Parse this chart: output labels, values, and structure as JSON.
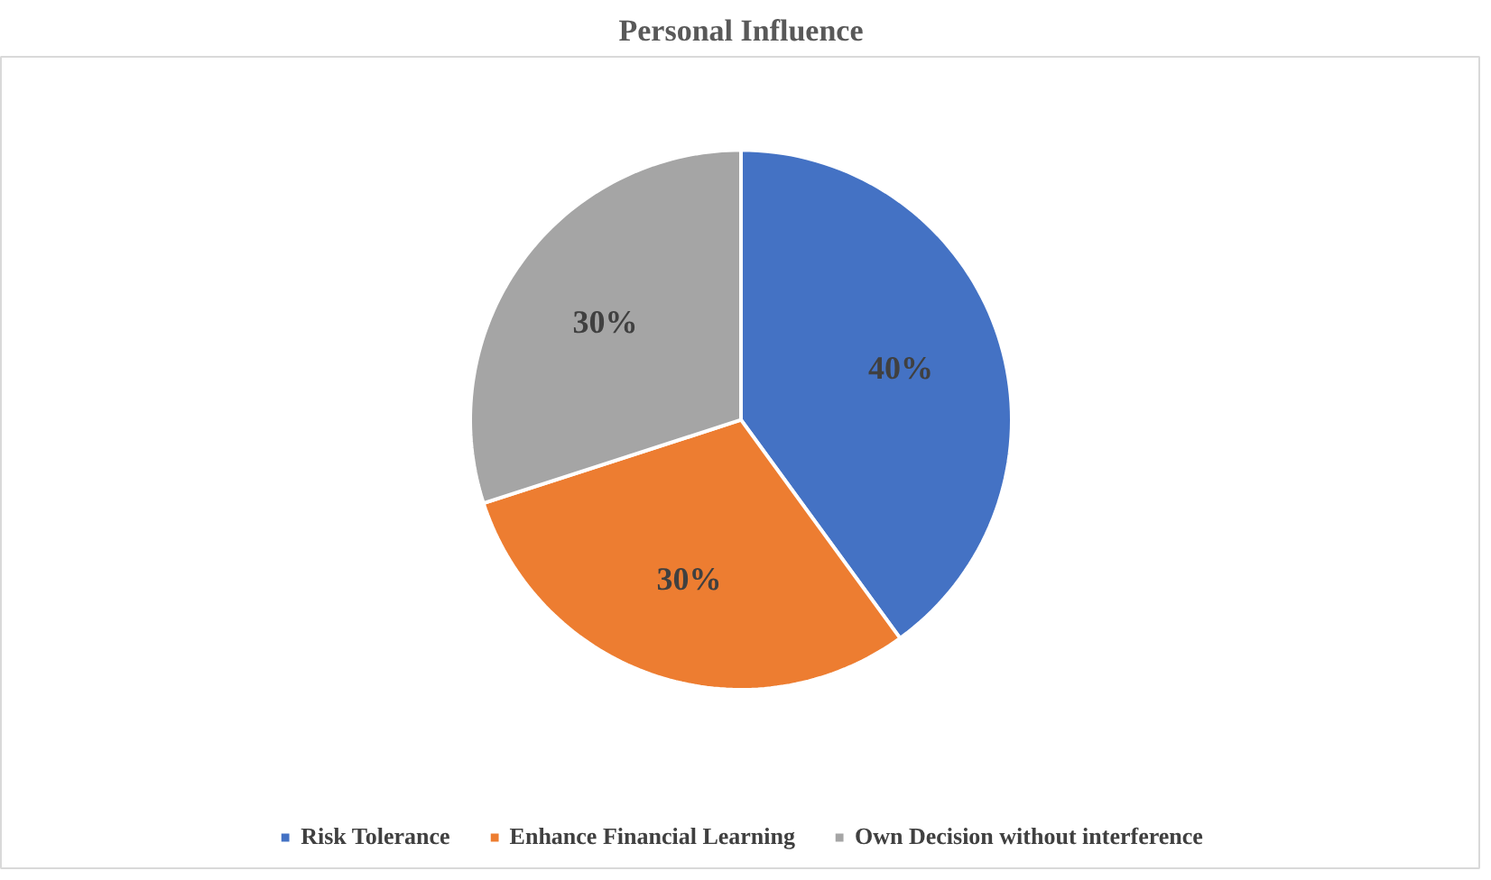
{
  "chart_data": {
    "type": "pie",
    "title": "Personal Influence",
    "categories": [
      "Risk Tolerance",
      "Enhance Financial Learning",
      "Own Decision without interference"
    ],
    "values": [
      40,
      30,
      30
    ],
    "colors": [
      "#4472c4",
      "#ed7d31",
      "#a5a5a5"
    ],
    "value_labels": [
      "40%",
      "30%",
      "30%"
    ],
    "legend": "bottom"
  }
}
